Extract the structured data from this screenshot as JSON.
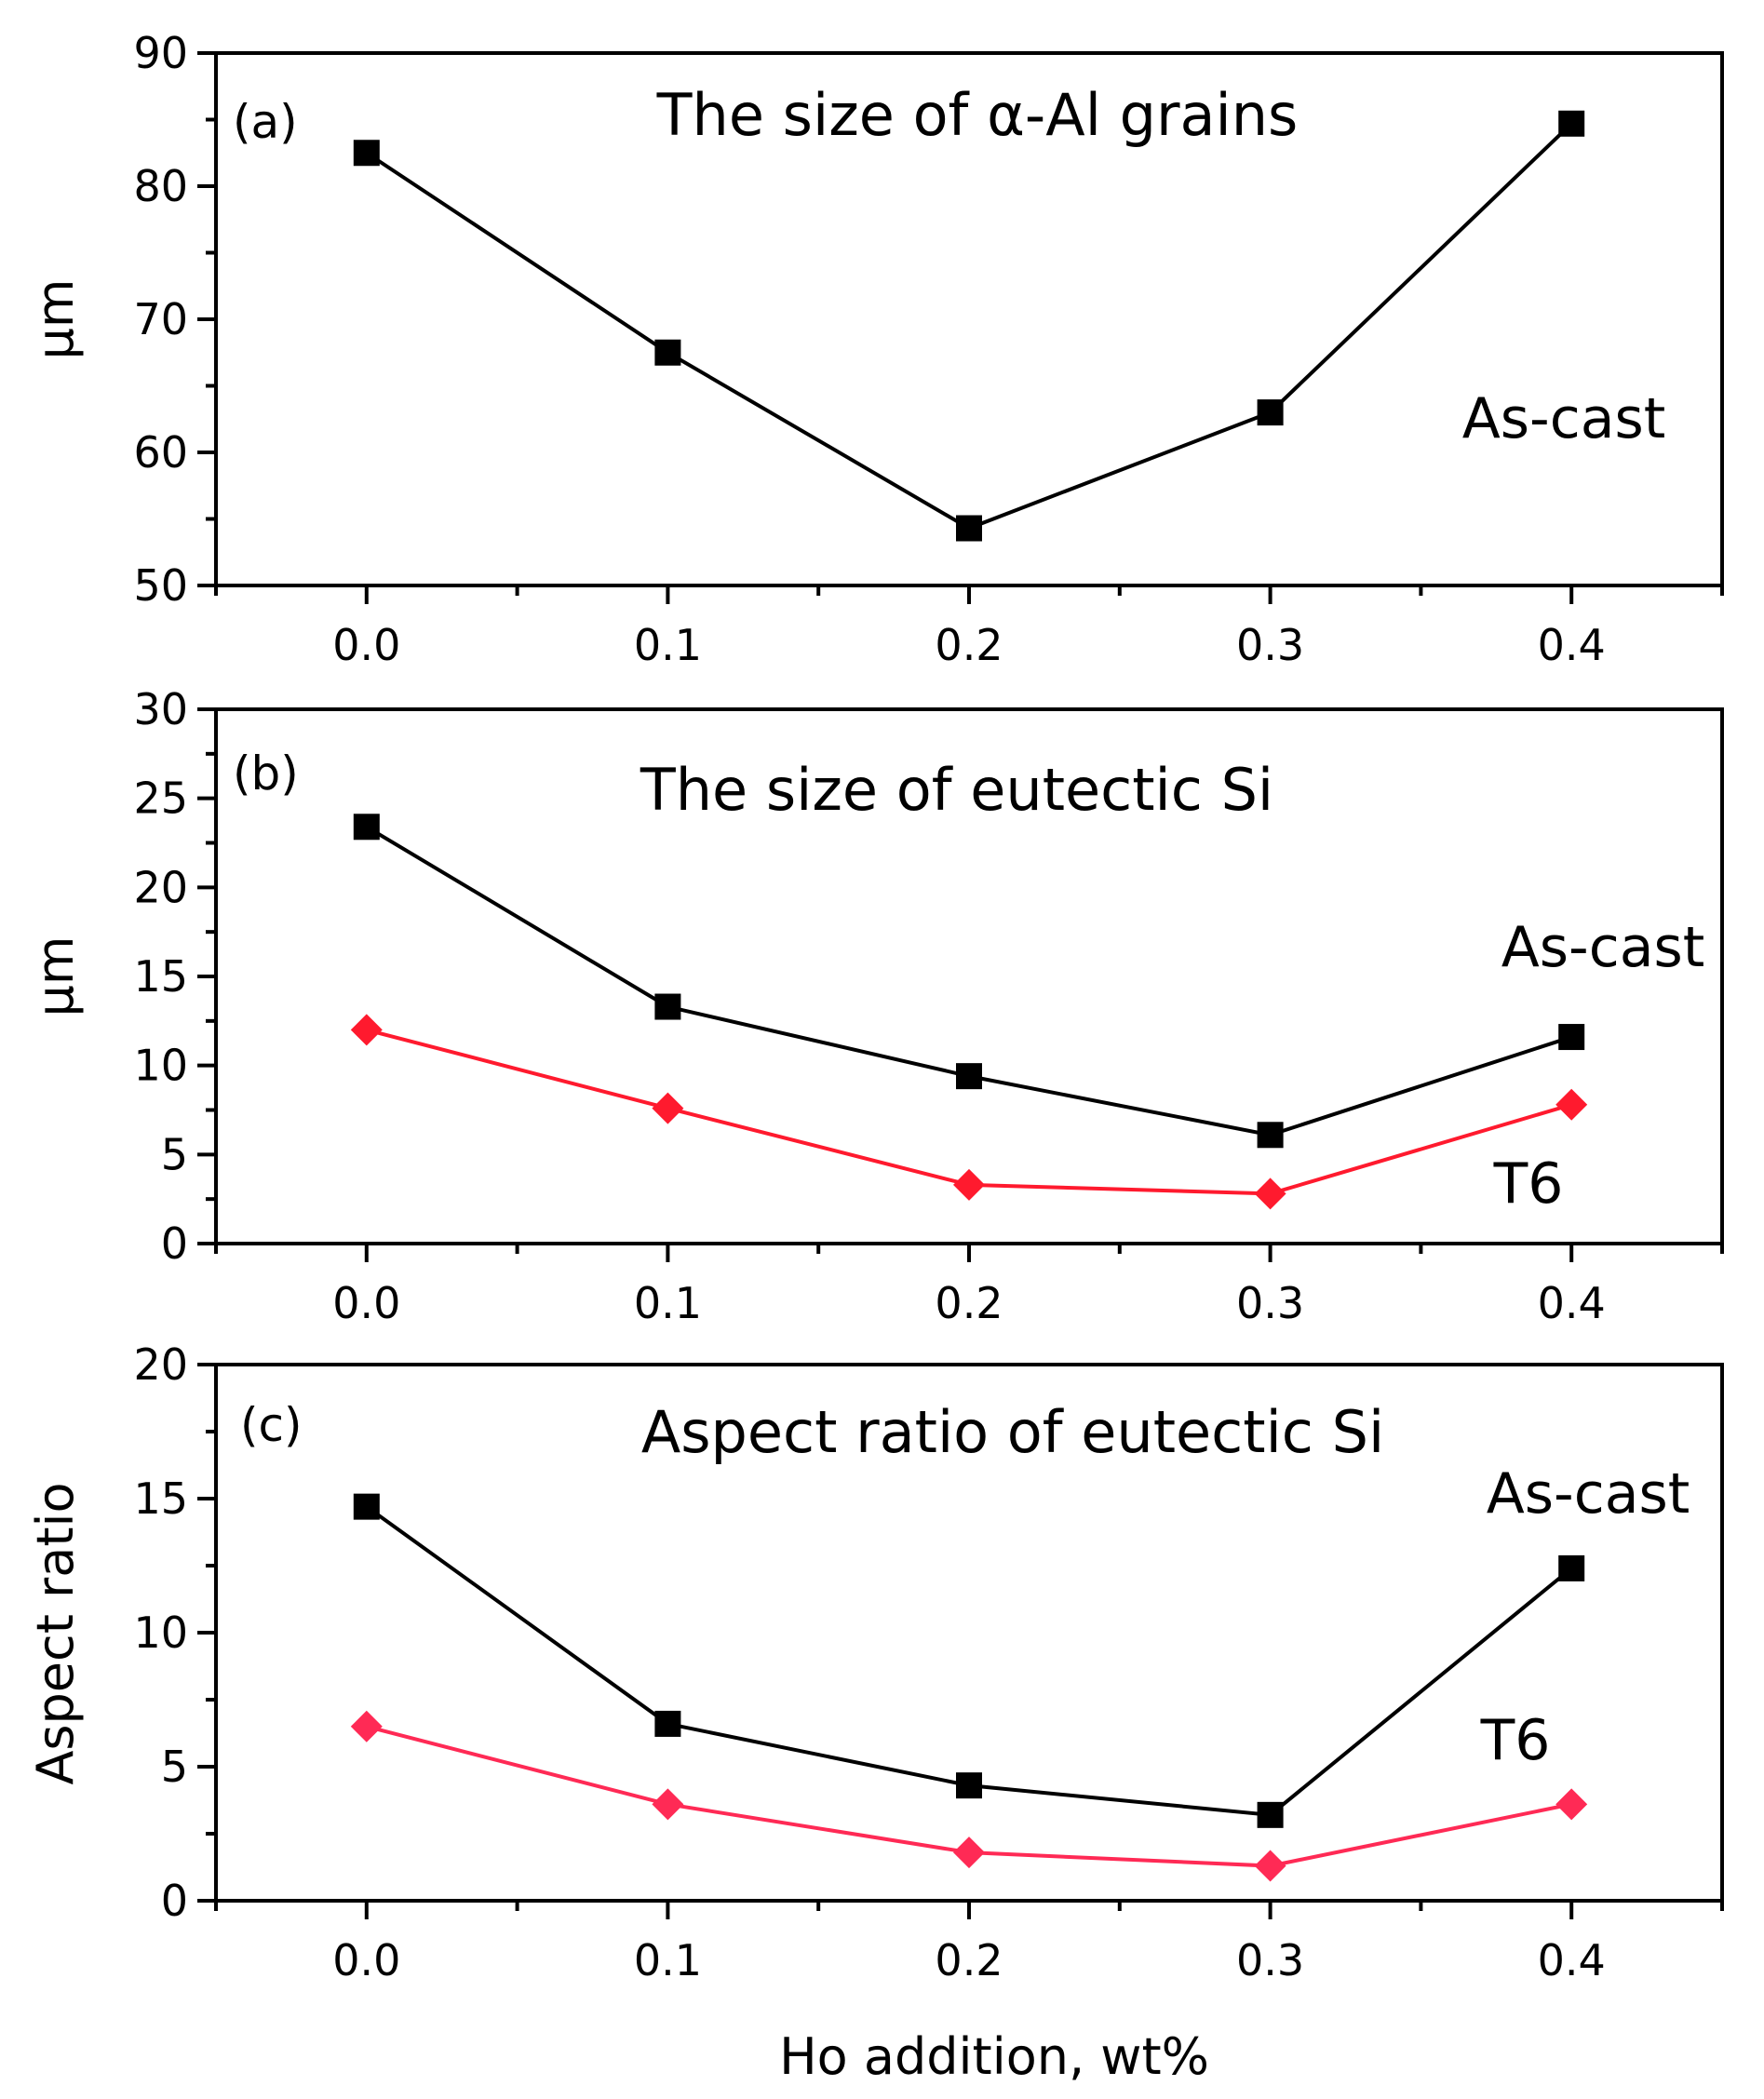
{
  "chart_data": [
    {
      "type": "line",
      "panel_label": "(a)",
      "title": "The size of α-Al grains",
      "xlabel": "",
      "ylabel": "μm",
      "xlim": [
        -0.05,
        0.45
      ],
      "ylim": [
        50,
        90
      ],
      "x_ticks": [
        0.0,
        0.1,
        0.2,
        0.3,
        0.4
      ],
      "x_tick_labels": [
        "0.0",
        "0.1",
        "0.2",
        "0.3",
        "0.4"
      ],
      "y_ticks": [
        50,
        60,
        70,
        80,
        90
      ],
      "y_tick_labels": [
        "50",
        "60",
        "70",
        "80",
        "90"
      ],
      "series": [
        {
          "name": "As-cast",
          "marker": "square",
          "color": "#000000",
          "x": [
            0.0,
            0.1,
            0.2,
            0.3,
            0.4
          ],
          "values": [
            82.5,
            67.5,
            54.3,
            63.0,
            84.7
          ]
        }
      ],
      "annotations": [
        {
          "text": "As-cast",
          "series": "As-cast"
        }
      ]
    },
    {
      "type": "line",
      "panel_label": "(b)",
      "title": "The size of eutectic Si",
      "xlabel": "",
      "ylabel": "μm",
      "xlim": [
        -0.05,
        0.45
      ],
      "ylim": [
        0,
        30
      ],
      "x_ticks": [
        0.0,
        0.1,
        0.2,
        0.3,
        0.4
      ],
      "x_tick_labels": [
        "0.0",
        "0.1",
        "0.2",
        "0.3",
        "0.4"
      ],
      "y_ticks": [
        0,
        5,
        10,
        15,
        20,
        25,
        30
      ],
      "y_tick_labels": [
        "0",
        "5",
        "10",
        "15",
        "20",
        "25",
        "30"
      ],
      "series": [
        {
          "name": "As-cast",
          "marker": "square",
          "color": "#000000",
          "x": [
            0.0,
            0.1,
            0.2,
            0.3,
            0.4
          ],
          "values": [
            23.4,
            13.3,
            9.4,
            6.1,
            11.6
          ]
        },
        {
          "name": "T6",
          "marker": "diamond",
          "color": "#ff1a2e",
          "x": [
            0.0,
            0.1,
            0.2,
            0.3,
            0.4
          ],
          "values": [
            12.0,
            7.6,
            3.3,
            2.8,
            7.8
          ]
        }
      ],
      "annotations": [
        {
          "text": "As-cast",
          "series": "As-cast"
        },
        {
          "text": "T6",
          "series": "T6"
        }
      ]
    },
    {
      "type": "line",
      "panel_label": "(c)",
      "title": "Aspect ratio of eutectic Si",
      "xlabel": "Ho addition, wt%",
      "ylabel": "Aspect ratio",
      "xlim": [
        -0.05,
        0.45
      ],
      "ylim": [
        0,
        20
      ],
      "x_ticks": [
        0.0,
        0.1,
        0.2,
        0.3,
        0.4
      ],
      "x_tick_labels": [
        "0.0",
        "0.1",
        "0.2",
        "0.3",
        "0.4"
      ],
      "y_ticks": [
        0,
        5,
        10,
        15,
        20
      ],
      "y_tick_labels": [
        "0",
        "5",
        "10",
        "15",
        "20"
      ],
      "series": [
        {
          "name": "As-cast",
          "marker": "square",
          "color": "#000000",
          "x": [
            0.0,
            0.1,
            0.2,
            0.3,
            0.4
          ],
          "values": [
            14.7,
            6.6,
            4.3,
            3.2,
            12.4
          ]
        },
        {
          "name": "T6",
          "marker": "diamond",
          "color": "#ff2a55",
          "x": [
            0.0,
            0.1,
            0.2,
            0.3,
            0.4
          ],
          "values": [
            6.5,
            3.6,
            1.8,
            1.3,
            3.6
          ]
        }
      ],
      "annotations": [
        {
          "text": "As-cast",
          "series": "As-cast"
        },
        {
          "text": "T6",
          "series": "T6"
        }
      ]
    }
  ]
}
